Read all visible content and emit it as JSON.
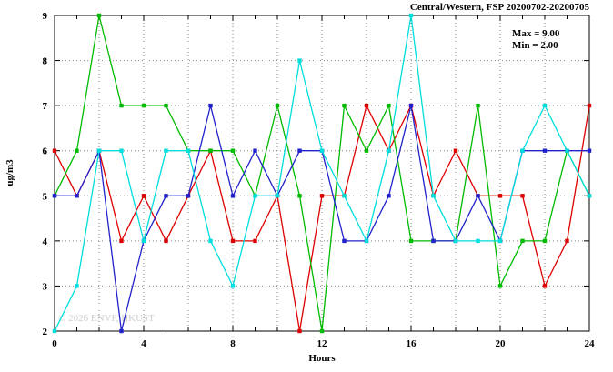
{
  "title": "Central/Western, FSP 20200702-20200705",
  "annotations": {
    "max": "Max = 9.00",
    "min": "Min = 2.00"
  },
  "watermark": "© 2026 ENVF, HKUST",
  "chart_data": {
    "type": "line",
    "title": "Central/Western, FSP 20200702-20200705",
    "xlabel": "Hours",
    "ylabel": "ug/m3",
    "xlim": [
      0,
      24
    ],
    "ylim": [
      2,
      9
    ],
    "xticks": [
      0,
      4,
      8,
      12,
      16,
      20,
      24
    ],
    "yticks": [
      2,
      3,
      4,
      5,
      6,
      7,
      8,
      9
    ],
    "x_grid_step": 2,
    "y_grid_step": 1,
    "grid": true,
    "legend_position": "none",
    "max_value": 9.0,
    "min_value": 2.0,
    "x": [
      0,
      1,
      2,
      3,
      4,
      5,
      6,
      7,
      8,
      9,
      10,
      11,
      12,
      13,
      14,
      15,
      16,
      17,
      18,
      19,
      20,
      21,
      22,
      23,
      24
    ],
    "series": [
      {
        "name": "red",
        "color": "#dd0000",
        "values": [
          6,
          5,
          6,
          4,
          5,
          4,
          5,
          6,
          4,
          4,
          5,
          2,
          5,
          5,
          7,
          6,
          7,
          5,
          6,
          5,
          5,
          5,
          3,
          4,
          7
        ]
      },
      {
        "name": "green",
        "color": "#00bb00",
        "values": [
          5,
          6,
          9,
          7,
          7,
          7,
          6,
          6,
          6,
          5,
          7,
          5,
          2,
          7,
          6,
          7,
          4,
          4,
          4,
          7,
          3,
          4,
          4,
          6,
          5
        ]
      },
      {
        "name": "blue",
        "color": "#2222cc",
        "values": [
          5,
          5,
          6,
          2,
          4,
          5,
          5,
          7,
          5,
          6,
          5,
          6,
          6,
          4,
          4,
          5,
          7,
          4,
          4,
          5,
          4,
          6,
          6,
          6,
          6
        ]
      },
      {
        "name": "cyan",
        "color": "#00dddd",
        "values": [
          2,
          3,
          6,
          6,
          4,
          6,
          6,
          4,
          3,
          5,
          5,
          8,
          6,
          5,
          4,
          6,
          9,
          5,
          4,
          4,
          4,
          6,
          7,
          6,
          5
        ]
      }
    ]
  }
}
